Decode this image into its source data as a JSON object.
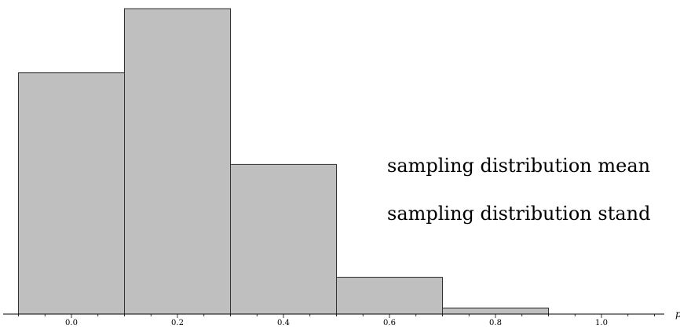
{
  "chart_data": {
    "type": "bar",
    "title": "",
    "xlabel": "p",
    "ylabel": "",
    "x_ticks": [
      "0.0",
      "0.2",
      "0.4",
      "0.6",
      "0.8",
      "1.0"
    ],
    "bins": [
      {
        "from": -0.1,
        "to": 0.1,
        "value": 0.79
      },
      {
        "from": 0.1,
        "to": 0.3,
        "value": 1.0
      },
      {
        "from": 0.3,
        "to": 0.5,
        "value": 0.49
      },
      {
        "from": 0.5,
        "to": 0.7,
        "value": 0.12
      },
      {
        "from": 0.7,
        "to": 0.9,
        "value": 0.02
      }
    ],
    "xlim": [
      -0.13,
      1.12
    ],
    "ylim": [
      0,
      1.0
    ],
    "grid": false,
    "bar_fill": "#bfbfbf",
    "bar_stroke": "#333333",
    "annotations": [
      "sampling distribution mean",
      "sampling distribution stand"
    ]
  }
}
